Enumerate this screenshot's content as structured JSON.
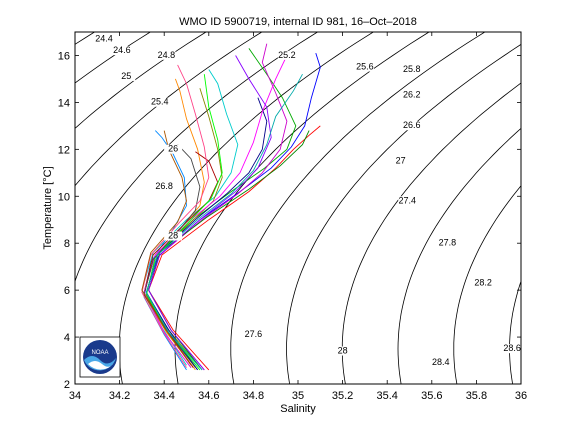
{
  "chart_data": {
    "type": "line",
    "title": "WMO ID 5900719, internal ID 981, 16–Oct–2018",
    "xlabel": "Salinity",
    "ylabel": "Temperature [°C]",
    "xlim": [
      34,
      36
    ],
    "ylim": [
      2,
      17
    ],
    "x_ticks": [
      "34",
      "34.2",
      "34.4",
      "34.6",
      "34.8",
      "35",
      "35.2",
      "35.4",
      "35.6",
      "35.8",
      "36"
    ],
    "y_ticks": [
      "2",
      "4",
      "6",
      "8",
      "10",
      "12",
      "14",
      "16"
    ],
    "grid": false,
    "legend": "none",
    "logo": "NOAA",
    "density_contours": {
      "levels": [
        24.4,
        24.6,
        24.8,
        25,
        25.2,
        25.4,
        25.6,
        25.8,
        26,
        26.2,
        26.4,
        26.6,
        26.8,
        27,
        27.2,
        27.4,
        27.6,
        27.8,
        28,
        28.2,
        28.4,
        28.6
      ],
      "labels": [
        {
          "text": "24.4",
          "s": 34.13,
          "t": 16.6
        },
        {
          "text": "24.6",
          "s": 34.21,
          "t": 16.1
        },
        {
          "text": "24.8",
          "s": 34.41,
          "t": 15.9
        },
        {
          "text": "25",
          "s": 34.23,
          "t": 15.0
        },
        {
          "text": "25.2",
          "s": 34.95,
          "t": 15.9
        },
        {
          "text": "25.4",
          "s": 34.38,
          "t": 13.9
        },
        {
          "text": "25.6",
          "s": 35.3,
          "t": 15.4
        },
        {
          "text": "25.8",
          "s": 35.51,
          "t": 15.3
        },
        {
          "text": "26",
          "s": 34.44,
          "t": 11.9
        },
        {
          "text": "26.2",
          "s": 35.51,
          "t": 14.2
        },
        {
          "text": "26.6",
          "s": 35.51,
          "t": 12.9
        },
        {
          "text": "26.8",
          "s": 34.4,
          "t": 10.3
        },
        {
          "text": "27",
          "s": 35.46,
          "t": 11.4
        },
        {
          "text": "27.4",
          "s": 35.49,
          "t": 9.7
        },
        {
          "text": "27.6",
          "s": 34.8,
          "t": 4.0
        },
        {
          "text": "28",
          "s": 34.44,
          "t": 8.2
        },
        {
          "text": "27.8",
          "s": 35.67,
          "t": 7.9
        },
        {
          "text": "28.2",
          "s": 35.83,
          "t": 6.2
        },
        {
          "text": "28",
          "s": 35.2,
          "t": 3.3
        },
        {
          "text": "28.4",
          "s": 35.64,
          "t": 2.8
        },
        {
          "text": "28.6",
          "s": 35.96,
          "t": 3.4
        }
      ]
    },
    "series": [
      {
        "color": "#ff0000",
        "points": [
          [
            34.6,
            2.6
          ],
          [
            34.44,
            4.3
          ],
          [
            34.33,
            6.0
          ],
          [
            34.39,
            7.5
          ],
          [
            34.6,
            9.0
          ],
          [
            34.78,
            10.2
          ],
          [
            34.9,
            11.2
          ],
          [
            34.98,
            12.0
          ],
          [
            35.05,
            12.6
          ],
          [
            35.1,
            13.0
          ]
        ]
      },
      {
        "color": "#0000ff",
        "points": [
          [
            34.55,
            2.6
          ],
          [
            34.42,
            4.2
          ],
          [
            34.32,
            5.9
          ],
          [
            34.37,
            7.4
          ],
          [
            34.56,
            9.0
          ],
          [
            34.74,
            10.2
          ],
          [
            34.88,
            11.2
          ],
          [
            34.97,
            12.1
          ],
          [
            35.03,
            13.0
          ],
          [
            35.06,
            14.2
          ],
          [
            35.1,
            15.5
          ],
          [
            35.08,
            16.1
          ]
        ]
      },
      {
        "color": "#00aa00",
        "points": [
          [
            34.52,
            2.7
          ],
          [
            34.4,
            4.2
          ],
          [
            34.31,
            5.9
          ],
          [
            34.36,
            7.5
          ],
          [
            34.53,
            9.0
          ],
          [
            34.7,
            10.2
          ],
          [
            34.85,
            11.2
          ],
          [
            34.95,
            12.0
          ],
          [
            34.99,
            13.0
          ],
          [
            34.93,
            14.2
          ],
          [
            34.86,
            15.2
          ],
          [
            34.78,
            16.3
          ]
        ]
      },
      {
        "color": "#cc00cc",
        "points": [
          [
            34.58,
            2.6
          ],
          [
            34.43,
            4.3
          ],
          [
            34.33,
            6.0
          ],
          [
            34.38,
            7.5
          ],
          [
            34.57,
            9.0
          ],
          [
            34.73,
            10.1
          ],
          [
            34.84,
            11.0
          ],
          [
            34.92,
            12.0
          ],
          [
            34.95,
            13.2
          ],
          [
            34.9,
            14.4
          ],
          [
            34.84,
            15.7
          ],
          [
            34.86,
            16.5
          ]
        ]
      },
      {
        "color": "#00cccc",
        "points": [
          [
            34.5,
            2.8
          ],
          [
            34.39,
            4.4
          ],
          [
            34.3,
            6.0
          ],
          [
            34.35,
            7.6
          ],
          [
            34.5,
            9.0
          ],
          [
            34.63,
            10.0
          ],
          [
            34.7,
            11.0
          ],
          [
            34.73,
            12.2
          ],
          [
            34.68,
            13.5
          ],
          [
            34.64,
            14.8
          ],
          [
            34.6,
            15.4
          ]
        ]
      },
      {
        "color": "#888800",
        "points": [
          [
            34.56,
            2.7
          ],
          [
            34.42,
            4.3
          ],
          [
            34.32,
            5.8
          ],
          [
            34.36,
            7.4
          ],
          [
            34.52,
            8.9
          ],
          [
            34.62,
            9.8
          ],
          [
            34.66,
            10.8
          ],
          [
            34.64,
            12.0
          ],
          [
            34.6,
            13.4
          ],
          [
            34.56,
            14.6
          ]
        ]
      },
      {
        "color": "#ff8800",
        "points": [
          [
            34.54,
            2.6
          ],
          [
            34.41,
            4.2
          ],
          [
            34.31,
            5.8
          ],
          [
            34.35,
            7.3
          ],
          [
            34.48,
            8.7
          ],
          [
            34.56,
            9.6
          ],
          [
            34.58,
            10.6
          ],
          [
            34.55,
            12.0
          ],
          [
            34.5,
            13.3
          ],
          [
            34.47,
            14.5
          ],
          [
            34.45,
            15.0
          ]
        ]
      },
      {
        "color": "#0088ff",
        "points": [
          [
            34.5,
            2.6
          ],
          [
            34.4,
            4.1
          ],
          [
            34.31,
            5.7
          ],
          [
            34.34,
            7.2
          ],
          [
            34.44,
            8.6
          ],
          [
            34.5,
            9.6
          ],
          [
            34.49,
            10.8
          ],
          [
            34.44,
            11.8
          ],
          [
            34.39,
            12.5
          ],
          [
            34.36,
            12.8
          ]
        ]
      },
      {
        "color": "#008800",
        "points": [
          [
            34.57,
            2.6
          ],
          [
            34.43,
            4.3
          ],
          [
            34.33,
            6.0
          ],
          [
            34.38,
            7.6
          ],
          [
            34.59,
            9.1
          ],
          [
            34.78,
            10.3
          ],
          [
            34.92,
            11.3
          ],
          [
            35.02,
            12.2
          ],
          [
            35.05,
            12.8
          ]
        ]
      },
      {
        "color": "#aa0000",
        "points": [
          [
            34.53,
            2.7
          ],
          [
            34.41,
            4.3
          ],
          [
            34.31,
            5.9
          ],
          [
            34.35,
            7.5
          ],
          [
            34.5,
            8.9
          ],
          [
            34.6,
            9.8
          ],
          [
            34.64,
            10.6
          ],
          [
            34.6,
            11.5
          ],
          [
            34.54,
            11.9
          ]
        ]
      },
      {
        "color": "#000088",
        "points": [
          [
            34.55,
            2.6
          ],
          [
            34.42,
            4.3
          ],
          [
            34.32,
            5.9
          ],
          [
            34.37,
            7.5
          ],
          [
            34.54,
            9.0
          ],
          [
            34.68,
            10.1
          ],
          [
            34.78,
            11.0
          ],
          [
            34.84,
            12.0
          ],
          [
            34.86,
            13.2
          ],
          [
            34.82,
            14.2
          ]
        ]
      },
      {
        "color": "#ff00ff",
        "points": [
          [
            34.52,
            2.7
          ],
          [
            34.4,
            4.2
          ],
          [
            34.31,
            5.9
          ],
          [
            34.36,
            7.5
          ],
          [
            34.52,
            9.0
          ],
          [
            34.65,
            10.0
          ],
          [
            34.74,
            11.0
          ],
          [
            34.8,
            12.3
          ],
          [
            34.84,
            13.6
          ],
          [
            34.9,
            15.0
          ],
          [
            34.95,
            16.0
          ]
        ]
      },
      {
        "color": "#00ff00",
        "points": [
          [
            34.56,
            2.6
          ],
          [
            34.42,
            4.2
          ],
          [
            34.32,
            5.8
          ],
          [
            34.36,
            7.4
          ],
          [
            34.51,
            8.9
          ],
          [
            34.61,
            9.9
          ],
          [
            34.66,
            11.0
          ],
          [
            34.64,
            12.4
          ],
          [
            34.6,
            13.8
          ],
          [
            34.58,
            15.2
          ]
        ]
      },
      {
        "color": "#8800ff",
        "points": [
          [
            34.58,
            2.6
          ],
          [
            34.43,
            4.3
          ],
          [
            34.33,
            6.0
          ],
          [
            34.38,
            7.5
          ],
          [
            34.56,
            9.0
          ],
          [
            34.72,
            10.2
          ],
          [
            34.82,
            11.2
          ],
          [
            34.88,
            12.5
          ],
          [
            34.86,
            13.8
          ],
          [
            34.78,
            15.0
          ],
          [
            34.72,
            16.0
          ]
        ]
      },
      {
        "color": "#444444",
        "points": [
          [
            34.54,
            2.7
          ],
          [
            34.41,
            4.3
          ],
          [
            34.31,
            5.8
          ],
          [
            34.35,
            7.3
          ],
          [
            34.47,
            8.6
          ],
          [
            34.54,
            9.4
          ],
          [
            34.56,
            10.4
          ],
          [
            34.52,
            11.6
          ],
          [
            34.46,
            12.2
          ]
        ]
      },
      {
        "color": "#ff4488",
        "points": [
          [
            34.5,
            2.7
          ],
          [
            34.39,
            4.3
          ],
          [
            34.3,
            5.9
          ],
          [
            34.34,
            7.5
          ],
          [
            34.47,
            8.9
          ],
          [
            34.56,
            9.8
          ],
          [
            34.6,
            10.8
          ],
          [
            34.58,
            12.1
          ],
          [
            34.54,
            13.5
          ],
          [
            34.5,
            14.8
          ],
          [
            34.46,
            15.6
          ]
        ]
      },
      {
        "color": "#00aaaa",
        "points": [
          [
            34.57,
            2.6
          ],
          [
            34.42,
            4.2
          ],
          [
            34.32,
            5.9
          ],
          [
            34.37,
            7.5
          ],
          [
            34.55,
            9.0
          ],
          [
            34.7,
            10.1
          ],
          [
            34.8,
            11.1
          ],
          [
            34.86,
            12.2
          ],
          [
            34.9,
            13.4
          ],
          [
            34.98,
            14.5
          ],
          [
            35.02,
            15.2
          ]
        ]
      },
      {
        "color": "#aa5500",
        "points": [
          [
            34.52,
            2.8
          ],
          [
            34.4,
            4.4
          ],
          [
            34.3,
            6.0
          ],
          [
            34.34,
            7.6
          ],
          [
            34.46,
            8.9
          ],
          [
            34.5,
            9.8
          ],
          [
            34.48,
            10.8
          ],
          [
            34.42,
            12.0
          ],
          [
            34.4,
            12.8
          ]
        ]
      }
    ]
  }
}
